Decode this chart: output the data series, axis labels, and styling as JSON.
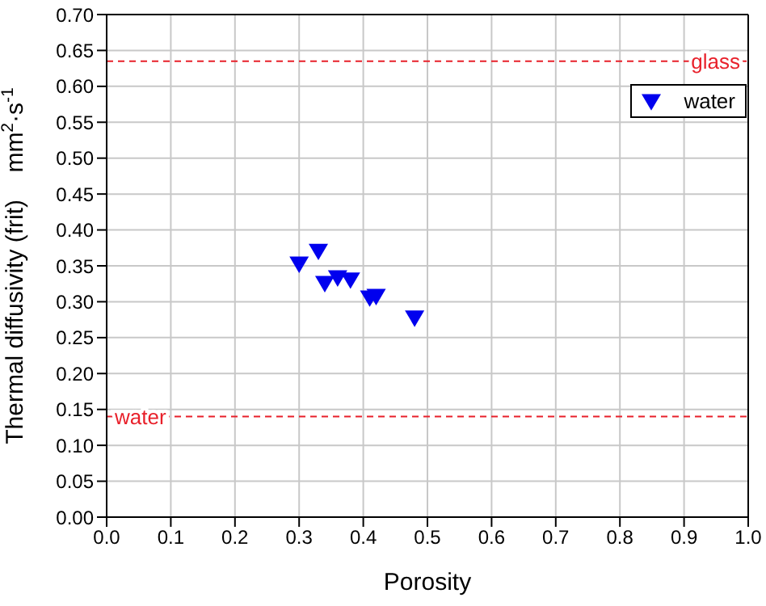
{
  "chart_data": {
    "type": "scatter",
    "xlabel": "Porosity",
    "ylabel": "Thermal diffusivity (frit)    mm$^{2}$·s$^{-1}$",
    "x": [
      0.3,
      0.33,
      0.34,
      0.36,
      0.38,
      0.41,
      0.42,
      0.48
    ],
    "series": [
      {
        "name": "water",
        "color": "#0000ee",
        "values": [
          0.352,
          0.37,
          0.325,
          0.333,
          0.33,
          0.305,
          0.307,
          0.277
        ]
      }
    ],
    "xlim": [
      0,
      1
    ],
    "xticks": [
      {
        "value": 0,
        "label": "0.0"
      },
      {
        "value": 0.1,
        "label": "0.1"
      },
      {
        "value": 0.2,
        "label": "0.2"
      },
      {
        "value": 0.3,
        "label": "0.3"
      },
      {
        "value": 0.4,
        "label": "0.4"
      },
      {
        "value": 0.5,
        "label": "0.5"
      },
      {
        "value": 0.6,
        "label": "0.6"
      },
      {
        "value": 0.7,
        "label": "0.7"
      },
      {
        "value": 0.8,
        "label": "0.8"
      },
      {
        "value": 0.9,
        "label": "0.9"
      },
      {
        "value": 1,
        "label": "1.0"
      }
    ],
    "ylim": [
      0,
      0.7
    ],
    "yticks": [
      {
        "value": 0,
        "label": "0.00"
      },
      {
        "value": 0.05,
        "label": "0.05"
      },
      {
        "value": 0.1,
        "label": "0.10"
      },
      {
        "value": 0.15,
        "label": "0.15"
      },
      {
        "value": 0.2,
        "label": "0.20"
      },
      {
        "value": 0.25,
        "label": "0.25"
      },
      {
        "value": 0.3,
        "label": "0.30"
      },
      {
        "value": 0.35,
        "label": "0.35"
      },
      {
        "value": 0.4,
        "label": "0.40"
      },
      {
        "value": 0.45,
        "label": "0.45"
      },
      {
        "value": 0.5,
        "label": "0.50"
      },
      {
        "value": 0.55,
        "label": "0.55"
      },
      {
        "value": 0.6,
        "label": "0.60"
      },
      {
        "value": 0.65,
        "label": "0.65"
      },
      {
        "value": 0.7,
        "label": "0.70"
      }
    ],
    "ref_lines": [
      {
        "axis": "y",
        "value": 0.635,
        "label": "glass",
        "color": "#e8202a",
        "line_style": "dashed"
      },
      {
        "axis": "y",
        "value": 0.14,
        "label": "water",
        "color": "#e8202a",
        "line_style": "dashed"
      }
    ],
    "grid": true,
    "legend": "top right",
    "marker": "triangle"
  }
}
